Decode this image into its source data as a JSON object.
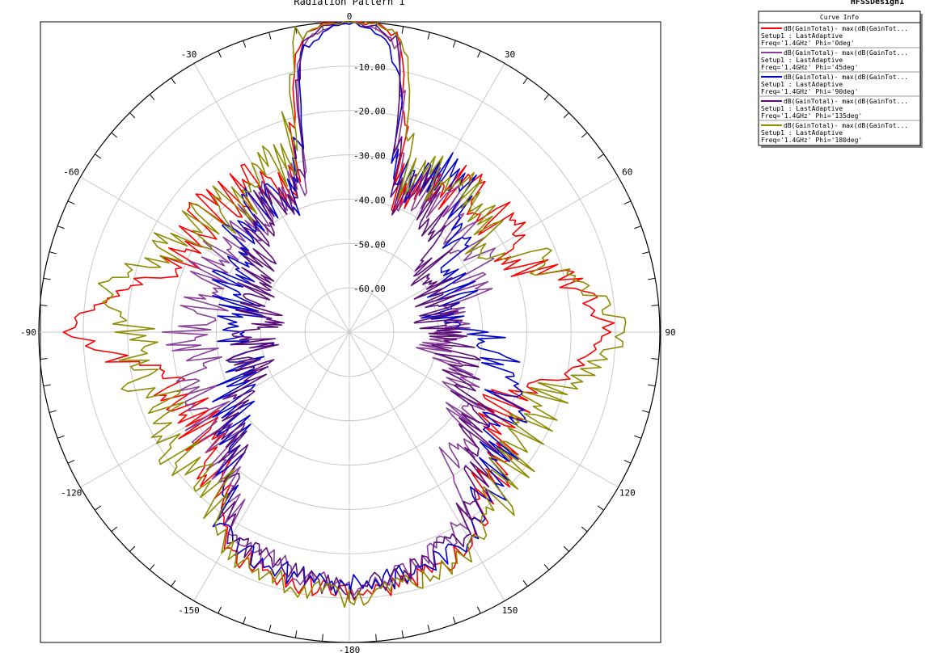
{
  "chart_data": {
    "type": "polar-line",
    "title": "Radiation Pattern 1",
    "brand": "HFSSDesign1",
    "angle_labels": [
      {
        "deg": 0,
        "label": "0"
      },
      {
        "deg": 30,
        "label": "30"
      },
      {
        "deg": 60,
        "label": "60"
      },
      {
        "deg": 90,
        "label": "90"
      },
      {
        "deg": 120,
        "label": "120"
      },
      {
        "deg": 150,
        "label": "150"
      },
      {
        "deg": 180,
        "label": "-180"
      },
      {
        "deg": -150,
        "label": "-150"
      },
      {
        "deg": -120,
        "label": "-120"
      },
      {
        "deg": -90,
        "label": "-90"
      },
      {
        "deg": -60,
        "label": "-60"
      },
      {
        "deg": -30,
        "label": "-30"
      }
    ],
    "r_ticks": [
      {
        "value": -10,
        "label": "-10.00"
      },
      {
        "value": -20,
        "label": "-20.00"
      },
      {
        "value": -30,
        "label": "-30.00"
      },
      {
        "value": -40,
        "label": "-40.00"
      },
      {
        "value": -50,
        "label": "-50.00"
      },
      {
        "value": -60,
        "label": "-60.00"
      }
    ],
    "rlim": [
      -70,
      0
    ],
    "legend": {
      "title": "Curve Info",
      "entries": [
        {
          "line1": "dB(GainTotal)- max(dB(GainTot...",
          "line2": "Setup1 : LastAdaptive",
          "line3": "Freq='1.4GHz' Phi='0deg'"
        },
        {
          "line1": "dB(GainTotal)- max(dB(GainTot...",
          "line2": "Setup1 : LastAdaptive",
          "line3": "Freq='1.4GHz' Phi='45deg'"
        },
        {
          "line1": "dB(GainTotal)- max(dB(GainTot...",
          "line2": "Setup1 : LastAdaptive",
          "line3": "Freq='1.4GHz' Phi='90deg'"
        },
        {
          "line1": "dB(GainTotal)- max(dB(GainTot...",
          "line2": "Setup1 : LastAdaptive",
          "line3": "Freq='1.4GHz' Phi='135deg'"
        },
        {
          "line1": "dB(GainTotal)- max(dB(GainTot...",
          "line2": "Setup1 : LastAdaptive",
          "line3": "Freq='1.4GHz' Phi='180deg'"
        }
      ]
    },
    "series": [
      {
        "color": "#ff0000",
        "theta": [
          -180,
          -165,
          -150,
          -140,
          -130,
          -120,
          -110,
          -100,
          -90,
          -80,
          -70,
          -60,
          -50,
          -40,
          -30,
          -20,
          -15,
          -10,
          -5,
          0,
          5,
          10,
          15,
          20,
          30,
          40,
          50,
          60,
          70,
          80,
          90,
          100,
          110,
          120,
          130,
          140,
          150,
          165,
          180
        ],
        "r": [
          -11,
          -13,
          -14,
          -26,
          -28,
          -30,
          -30,
          -26,
          -7,
          -16,
          -30,
          -30,
          -29,
          -30,
          -31,
          -34,
          -23,
          -3,
          0,
          0,
          0,
          -4,
          -24,
          -38,
          -31,
          -29,
          -28,
          -28,
          -28,
          -17,
          -11,
          -21,
          -31,
          -31,
          -26,
          -25,
          -15,
          -12,
          -11
        ]
      },
      {
        "color": "#8a3f9a",
        "theta": [
          -180,
          -165,
          -150,
          -140,
          -130,
          -120,
          -110,
          -100,
          -90,
          -80,
          -70,
          -60,
          -50,
          -40,
          -30,
          -20,
          -15,
          -10,
          -5,
          0,
          5,
          10,
          15,
          20,
          30,
          40,
          50,
          60,
          70,
          80,
          90,
          100,
          110,
          120,
          130,
          140,
          150,
          165,
          180
        ],
        "r": [
          -12,
          -15,
          -18,
          -30,
          -32,
          -33,
          -33,
          -36,
          -33,
          -38,
          -36,
          -36,
          -38,
          -36,
          -34,
          -36,
          -28,
          -5,
          -1,
          0,
          -1,
          -5,
          -30,
          -36,
          -33,
          -33,
          -36,
          -36,
          -41,
          -45,
          -46,
          -50,
          -46,
          -40,
          -36,
          -35,
          -20,
          -15,
          -12
        ]
      },
      {
        "color": "#0000cc",
        "theta": [
          -180,
          -165,
          -150,
          -140,
          -130,
          -120,
          -110,
          -100,
          -90,
          -80,
          -70,
          -60,
          -50,
          -40,
          -30,
          -20,
          -15,
          -10,
          -5,
          0,
          5,
          10,
          15,
          20,
          30,
          40,
          50,
          60,
          70,
          80,
          90,
          100,
          110,
          120,
          130,
          140,
          150,
          165,
          180
        ],
        "r": [
          -13,
          -14,
          -16,
          -28,
          -36,
          -40,
          -43,
          -47,
          -45,
          -45,
          -42,
          -42,
          -38,
          -35,
          -34,
          -36,
          -28,
          -7,
          -2,
          0,
          -2,
          -7,
          -30,
          -35,
          -28,
          -30,
          -38,
          -46,
          -45,
          -48,
          -42,
          -35,
          -32,
          -30,
          -26,
          -22,
          -16,
          -14,
          -13
        ]
      },
      {
        "color": "#5a0f78",
        "theta": [
          -180,
          -165,
          -150,
          -140,
          -130,
          -120,
          -110,
          -100,
          -90,
          -80,
          -70,
          -60,
          -50,
          -40,
          -30,
          -20,
          -15,
          -10,
          -5,
          0,
          5,
          10,
          15,
          20,
          30,
          40,
          50,
          60,
          70,
          80,
          90,
          100,
          110,
          120,
          130,
          140,
          150,
          165,
          180
        ],
        "r": [
          -12,
          -15,
          -17,
          -30,
          -34,
          -42,
          -46,
          -48,
          -48,
          -50,
          -48,
          -46,
          -44,
          -40,
          -35,
          -36,
          -28,
          -5,
          -1,
          0,
          -1,
          -5,
          -30,
          -36,
          -34,
          -40,
          -46,
          -48,
          -50,
          -50,
          -48,
          -46,
          -44,
          -38,
          -32,
          -28,
          -18,
          -15,
          -12
        ]
      },
      {
        "color": "#8c8c00",
        "theta": [
          -180,
          -165,
          -150,
          -140,
          -130,
          -120,
          -110,
          -100,
          -90,
          -80,
          -70,
          -60,
          -50,
          -40,
          -30,
          -20,
          -15,
          -10,
          -5,
          0,
          5,
          10,
          15,
          20,
          30,
          40,
          50,
          60,
          70,
          80,
          90,
          100,
          110,
          120,
          130,
          140,
          150,
          165,
          180
        ],
        "r": [
          -10,
          -12,
          -14,
          -24,
          -24,
          -22,
          -25,
          -20,
          -22,
          -14,
          -22,
          -28,
          -30,
          -31,
          -28,
          -30,
          -20,
          -2,
          0,
          0,
          0,
          -2,
          -17,
          -32,
          -30,
          -30,
          -32,
          -33,
          -24,
          -15,
          -8,
          -16,
          -24,
          -24,
          -22,
          -20,
          -14,
          -12,
          -10
        ]
      }
    ]
  }
}
